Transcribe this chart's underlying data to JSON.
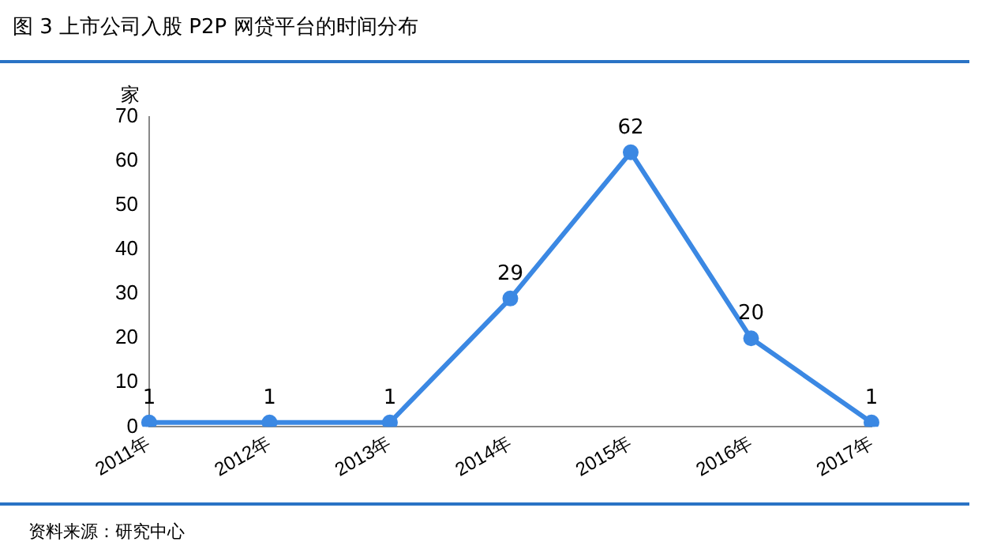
{
  "chart_data": {
    "type": "line",
    "title": "图 3  上市公司入股 P2P 网贷平台的时间分布",
    "ylabel": "家",
    "categories": [
      "2011年",
      "2012年",
      "2013年",
      "2014年",
      "2015年",
      "2016年",
      "2017年"
    ],
    "series": [
      {
        "color": "#3b88e3",
        "values": [
          1,
          1,
          1,
          29,
          62,
          20,
          1
        ]
      }
    ],
    "ylim": [
      0,
      70
    ],
    "yticks": [
      0,
      10,
      20,
      30,
      40,
      50,
      60,
      70
    ],
    "grid": false,
    "legend": false,
    "marker": "circle",
    "line_style": "solid",
    "data_labels": true,
    "annotations": [
      "资料来源：研究中心"
    ]
  }
}
